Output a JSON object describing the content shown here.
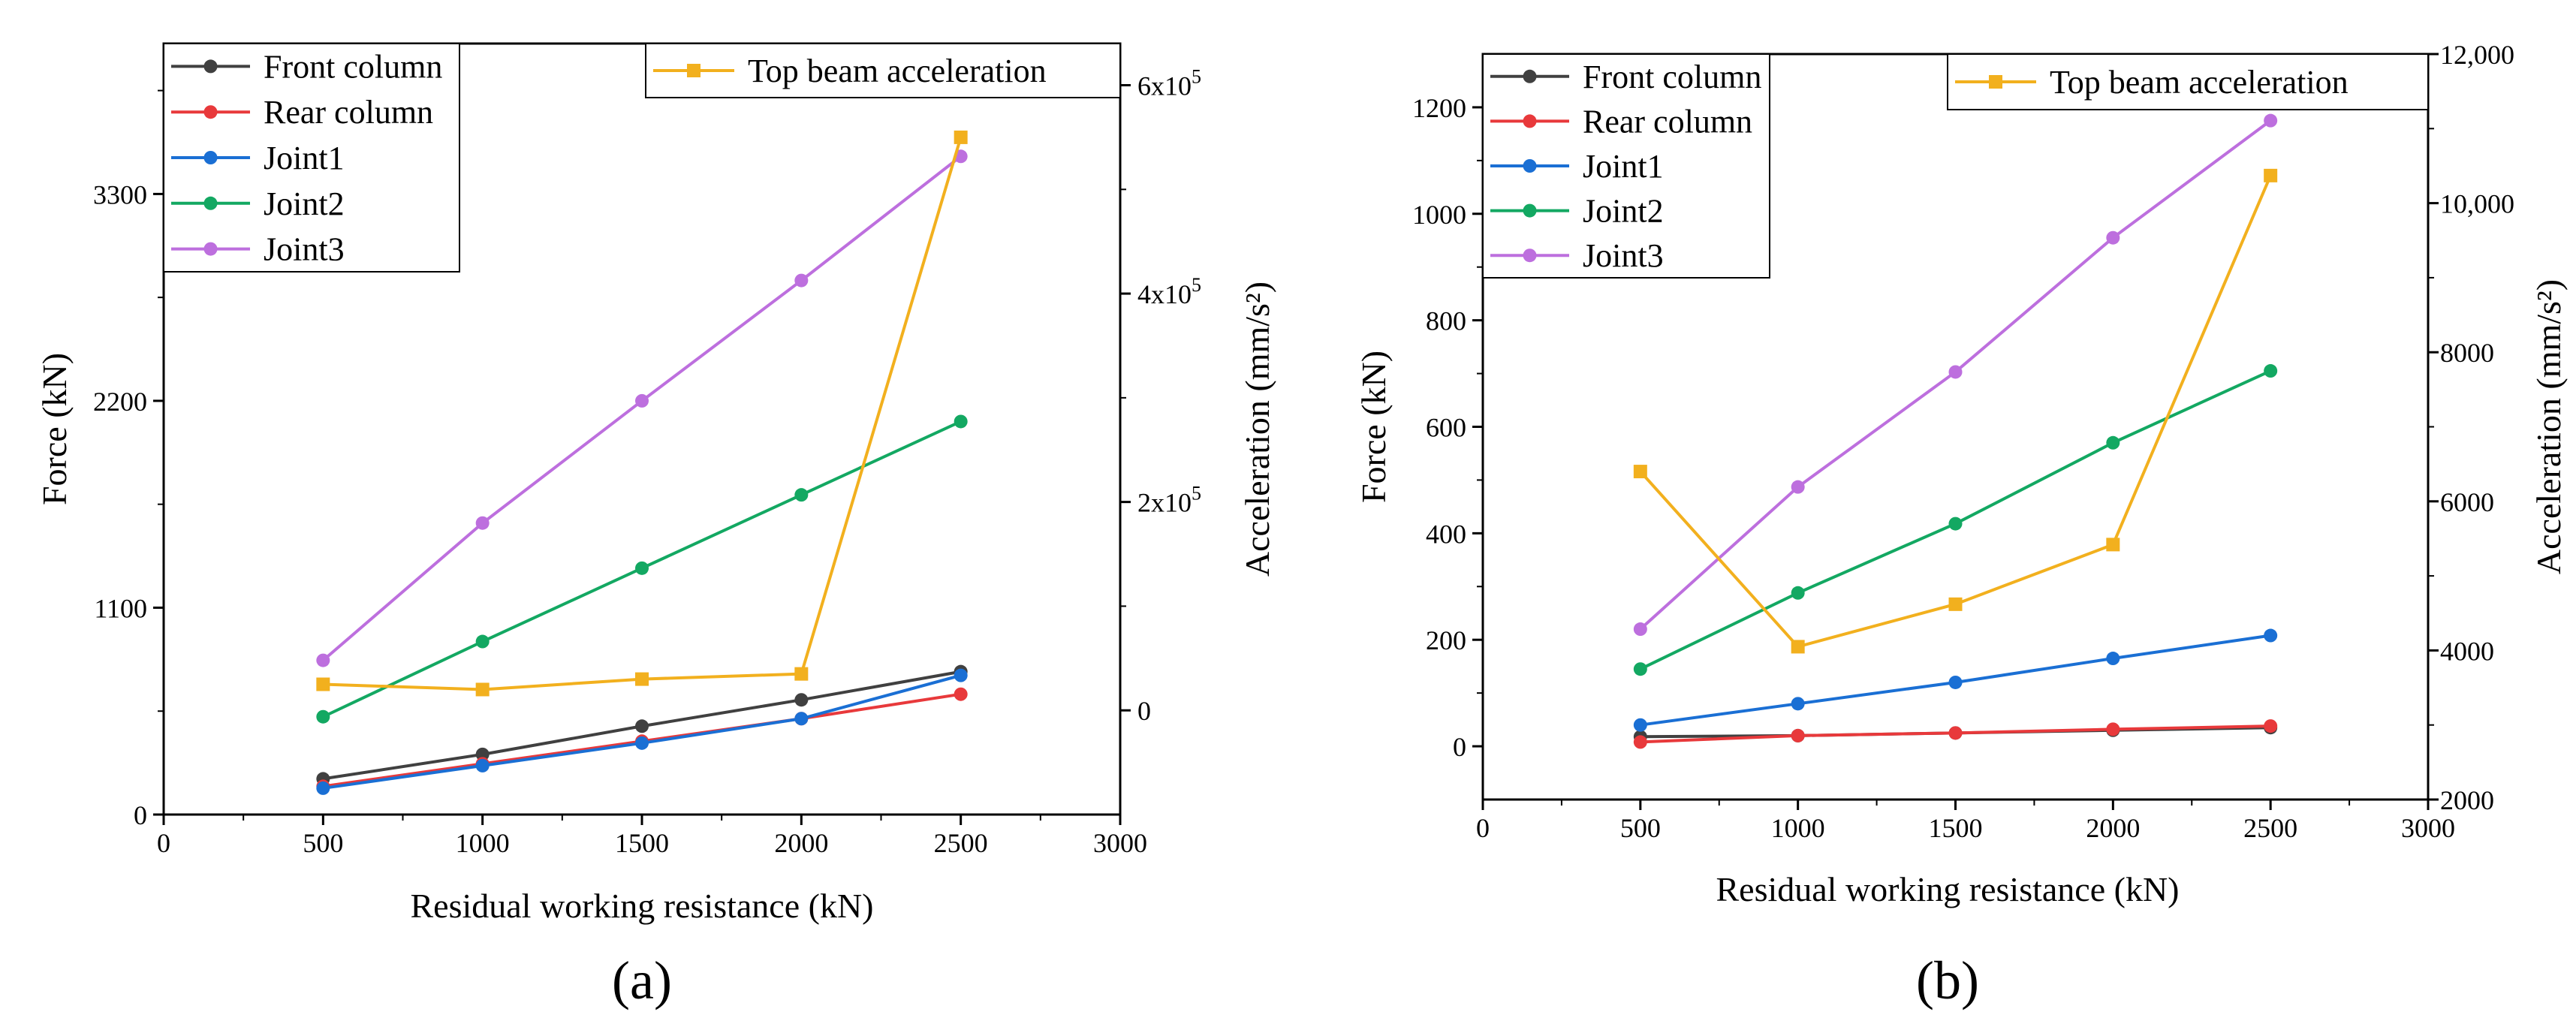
{
  "chart_data": [
    {
      "type": "line",
      "panel_label": "(a)",
      "xlabel": "Residual working resistance (kN)",
      "ylabel": "Force (kN)",
      "y2label": "Acceleration (mm/s²)",
      "xlim": [
        0,
        3000
      ],
      "xticks": [
        0,
        500,
        1000,
        1500,
        2000,
        2500,
        3000
      ],
      "ylim": [
        0,
        4100
      ],
      "yticks": [
        0,
        1100,
        2200,
        3300
      ],
      "y2lim": [
        -100000,
        640000
      ],
      "y2ticks": [
        0,
        200000,
        400000,
        600000
      ],
      "y2tick_labels": [
        {
          "base": "0",
          "exp": ""
        },
        {
          "base": "2x10",
          "exp": "5"
        },
        {
          "base": "4x10",
          "exp": "5"
        },
        {
          "base": "6x10",
          "exp": "5"
        }
      ],
      "x": [
        500,
        1000,
        1500,
        2000,
        2500
      ],
      "legend_left": [
        "Front column",
        "Rear column",
        "Joint1",
        "Joint2",
        "Joint3"
      ],
      "legend_right": [
        "Top beam acceleration"
      ],
      "series": [
        {
          "name": "Front column",
          "color": "#404040",
          "marker": "circle",
          "axis": "left",
          "values": [
            190,
            320,
            470,
            610,
            760
          ]
        },
        {
          "name": "Rear column",
          "color": "#e8393b",
          "marker": "circle",
          "axis": "left",
          "values": [
            150,
            270,
            390,
            510,
            640
          ]
        },
        {
          "name": "Joint1",
          "color": "#1a6fd4",
          "marker": "circle",
          "axis": "left",
          "values": [
            140,
            260,
            380,
            510,
            740
          ]
        },
        {
          "name": "Joint2",
          "color": "#13a862",
          "marker": "circle",
          "axis": "left",
          "values": [
            520,
            920,
            1310,
            1700,
            2090
          ]
        },
        {
          "name": "Joint3",
          "color": "#bd6fde",
          "marker": "circle",
          "axis": "left",
          "values": [
            820,
            1550,
            2200,
            2840,
            3500
          ]
        },
        {
          "name": "Top beam acceleration",
          "color": "#f2b01e",
          "marker": "square",
          "axis": "right",
          "values": [
            25000,
            20000,
            30000,
            35000,
            550000
          ]
        }
      ]
    },
    {
      "type": "line",
      "panel_label": "(b)",
      "xlabel": "Residual working resistance (kN)",
      "ylabel": "Force (kN)",
      "y2label": "Acceleration (mm/s²)",
      "xlim": [
        0,
        3000
      ],
      "xticks": [
        0,
        500,
        1000,
        1500,
        2000,
        2500,
        3000
      ],
      "ylim": [
        -100,
        1300
      ],
      "yticks": [
        0,
        200,
        400,
        600,
        800,
        1000,
        1200
      ],
      "y2lim": [
        2000,
        12000
      ],
      "y2ticks": [
        2000,
        4000,
        6000,
        8000,
        10000,
        12000
      ],
      "y2tick_labels": [
        {
          "base": "2000",
          "exp": ""
        },
        {
          "base": "4000",
          "exp": ""
        },
        {
          "base": "6000",
          "exp": ""
        },
        {
          "base": "8000",
          "exp": ""
        },
        {
          "base": "10,000",
          "exp": ""
        },
        {
          "base": "12,000",
          "exp": ""
        }
      ],
      "x": [
        500,
        1000,
        1500,
        2000,
        2500
      ],
      "legend_left": [
        "Front column",
        "Rear column",
        "Joint1",
        "Joint2",
        "Joint3"
      ],
      "legend_right": [
        "Top beam acceleration"
      ],
      "series": [
        {
          "name": "Front column",
          "color": "#404040",
          "marker": "circle",
          "axis": "left",
          "values": [
            18,
            20,
            25,
            30,
            35
          ]
        },
        {
          "name": "Rear column",
          "color": "#e8393b",
          "marker": "circle",
          "axis": "left",
          "values": [
            8,
            20,
            25,
            32,
            38
          ]
        },
        {
          "name": "Joint1",
          "color": "#1a6fd4",
          "marker": "circle",
          "axis": "left",
          "values": [
            40,
            80,
            120,
            165,
            208
          ]
        },
        {
          "name": "Joint2",
          "color": "#13a862",
          "marker": "circle",
          "axis": "left",
          "values": [
            145,
            288,
            418,
            570,
            705
          ]
        },
        {
          "name": "Joint3",
          "color": "#bd6fde",
          "marker": "circle",
          "axis": "left",
          "values": [
            220,
            487,
            703,
            955,
            1175
          ]
        },
        {
          "name": "Top beam acceleration",
          "color": "#f2b01e",
          "marker": "square",
          "axis": "right",
          "values": [
            6400,
            4050,
            4620,
            5420,
            10370
          ]
        }
      ]
    }
  ]
}
